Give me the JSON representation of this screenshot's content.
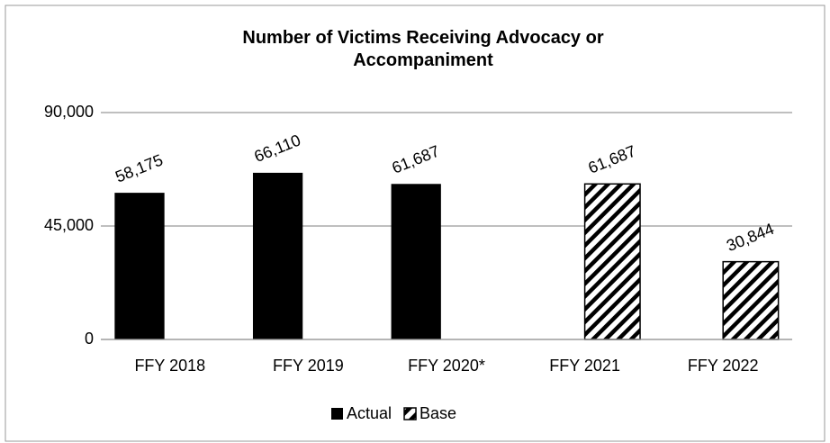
{
  "chart_data": {
    "type": "bar",
    "title": "Number of Victims Receiving Advocacy or Accompaniment",
    "categories": [
      "FFY 2018",
      "FFY 2019",
      "FFY 2020*",
      "FFY 2021",
      "FFY 2022"
    ],
    "series": [
      {
        "name": "Actual",
        "color": "#000000",
        "values": [
          58175,
          66110,
          61687,
          null,
          null
        ],
        "value_labels": [
          "58,175",
          "66,110",
          "61,687",
          null,
          null
        ]
      },
      {
        "name": "Base",
        "color": "#000000",
        "pattern": "hatch",
        "values": [
          null,
          null,
          null,
          61687,
          30844
        ],
        "value_labels": [
          null,
          null,
          null,
          "61,687",
          "30,844"
        ]
      }
    ],
    "ylim": [
      0,
      90000
    ],
    "yticks": [
      0,
      {
        "value": 45000,
        "label": "45,000"
      },
      {
        "value": 90000,
        "label": "90,000"
      }
    ],
    "grid": true,
    "legend": "bottom"
  }
}
